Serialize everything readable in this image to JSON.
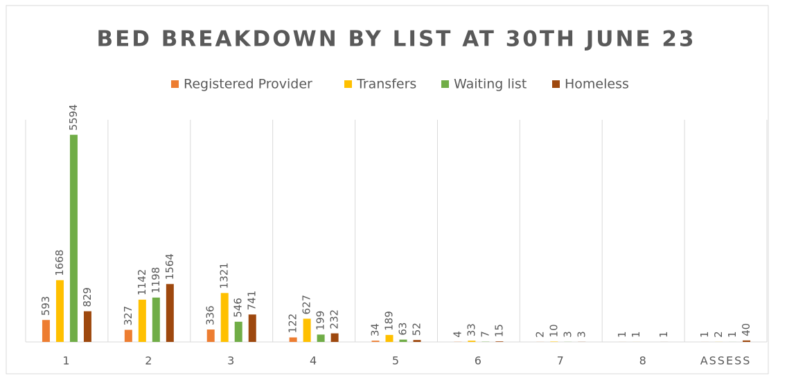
{
  "chart_data": {
    "type": "bar",
    "title": "BED BREAKDOWN  BY LIST AT 30TH JUNE 23",
    "categories": [
      "1",
      "2",
      "3",
      "4",
      "5",
      "6",
      "7",
      "8",
      "ASSESS"
    ],
    "series": [
      {
        "name": "Registered Provider",
        "color": "#ED7D31",
        "values": [
          593,
          327,
          336,
          122,
          34,
          4,
          2,
          1,
          1
        ]
      },
      {
        "name": "Transfers",
        "color": "#FFC000",
        "values": [
          1668,
          1142,
          1321,
          627,
          189,
          33,
          10,
          1,
          2
        ]
      },
      {
        "name": "Waiting list",
        "color": "#70AD47",
        "values": [
          5594,
          1198,
          546,
          199,
          63,
          7,
          3,
          null,
          1
        ]
      },
      {
        "name": "Homeless",
        "color": "#9E480E",
        "values": [
          829,
          1564,
          741,
          232,
          52,
          15,
          3,
          1,
          40
        ]
      }
    ],
    "ylim": [
      0,
      6000
    ],
    "legend": "top",
    "grid": true
  }
}
